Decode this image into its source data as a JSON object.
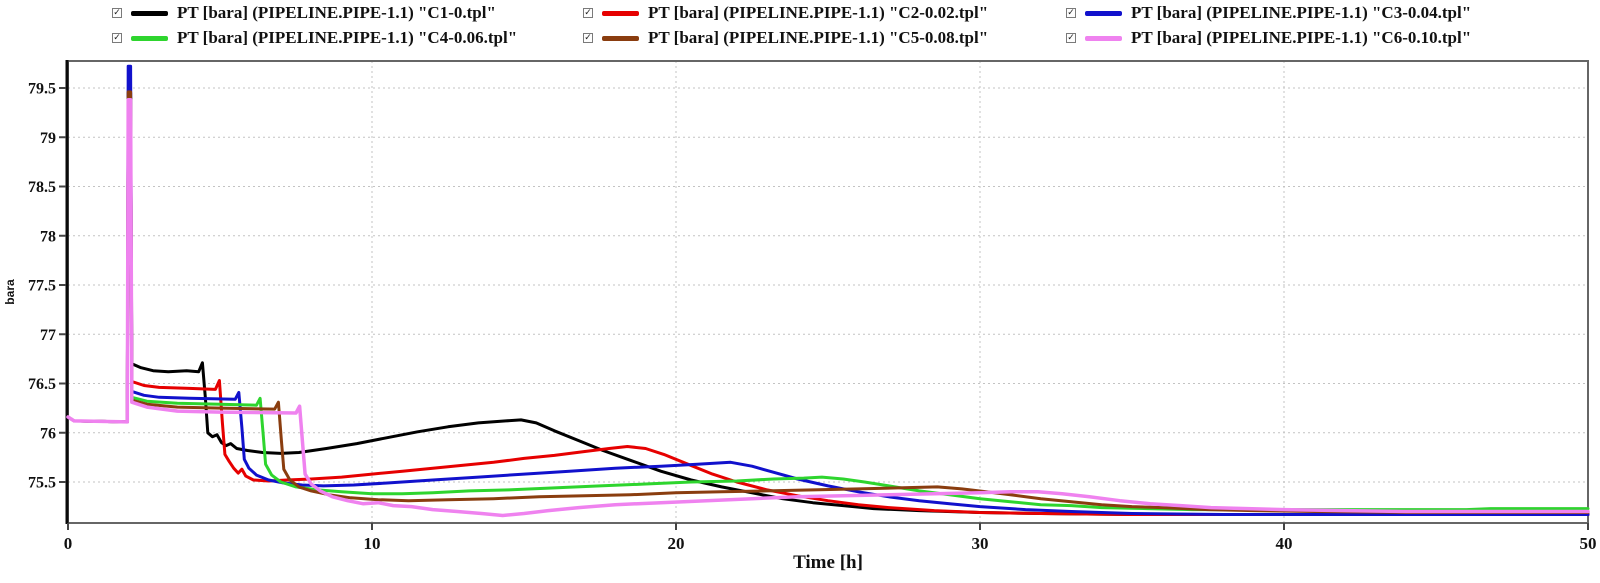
{
  "legend": {
    "check_glyph": "✓",
    "items": [
      {
        "label": "PT [bara] (PIPELINE.PIPE-1.1) \"C1-0.tpl\"",
        "color": "#000000",
        "checked": true
      },
      {
        "label": "PT [bara] (PIPELINE.PIPE-1.1) \"C2-0.02.tpl\"",
        "color": "#e60000",
        "checked": true
      },
      {
        "label": "PT [bara] (PIPELINE.PIPE-1.1) \"C3-0.04.tpl\"",
        "color": "#1111cc",
        "checked": true
      },
      {
        "label": "PT [bara] (PIPELINE.PIPE-1.1) \"C4-0.06.tpl\"",
        "color": "#2ed52e",
        "checked": true
      },
      {
        "label": "PT [bara] (PIPELINE.PIPE-1.1) \"C5-0.08.tpl\"",
        "color": "#8a3d0f",
        "checked": true
      },
      {
        "label": "PT [bara] (PIPELINE.PIPE-1.1) \"C6-0.10.tpl\"",
        "color": "#ef82ef",
        "checked": true
      }
    ]
  },
  "chart_data": {
    "type": "line",
    "title": "",
    "xlabel": "Time [h]",
    "ylabel": "bara",
    "xlim": [
      0,
      50
    ],
    "ylim": [
      75.08,
      79.77
    ],
    "x_ticks": [
      0,
      10,
      20,
      30,
      40,
      50
    ],
    "y_ticks": [
      75.5,
      76,
      76.5,
      77,
      77.5,
      78,
      78.5,
      79,
      79.5
    ],
    "grid": true,
    "legend_position": "top",
    "series": [
      {
        "name": "C1-0.tpl",
        "color": "#000000",
        "width": 3,
        "points": [
          [
            0,
            76.16
          ],
          [
            0.2,
            76.12
          ],
          [
            1.95,
            76.11
          ],
          [
            1.98,
            79.45
          ],
          [
            2.06,
            79.45
          ],
          [
            2.1,
            76.7
          ],
          [
            2.4,
            76.66
          ],
          [
            2.8,
            76.63
          ],
          [
            3.3,
            76.62
          ],
          [
            3.9,
            76.63
          ],
          [
            4.3,
            76.62
          ],
          [
            4.42,
            76.71
          ],
          [
            4.52,
            76.35
          ],
          [
            4.6,
            76.0
          ],
          [
            4.75,
            75.96
          ],
          [
            4.9,
            75.98
          ],
          [
            5.05,
            75.9
          ],
          [
            5.2,
            75.87
          ],
          [
            5.35,
            75.89
          ],
          [
            5.55,
            75.84
          ],
          [
            5.9,
            75.82
          ],
          [
            6.4,
            75.8
          ],
          [
            7,
            75.79
          ],
          [
            7.6,
            75.8
          ],
          [
            8.5,
            75.84
          ],
          [
            9.5,
            75.89
          ],
          [
            10.5,
            75.95
          ],
          [
            11.5,
            76.01
          ],
          [
            12.5,
            76.06
          ],
          [
            13.5,
            76.1
          ],
          [
            14.4,
            76.12
          ],
          [
            14.9,
            76.13
          ],
          [
            15.4,
            76.1
          ],
          [
            16,
            76.02
          ],
          [
            16.8,
            75.92
          ],
          [
            17.6,
            75.82
          ],
          [
            18.5,
            75.72
          ],
          [
            19.5,
            75.61
          ],
          [
            20.5,
            75.52
          ],
          [
            21.5,
            75.45
          ],
          [
            22.5,
            75.39
          ],
          [
            23.5,
            75.33
          ],
          [
            24.5,
            75.29
          ],
          [
            25.5,
            75.26
          ],
          [
            26.5,
            75.23
          ],
          [
            28,
            75.21
          ],
          [
            30,
            75.19
          ],
          [
            32,
            75.18
          ],
          [
            35,
            75.17
          ],
          [
            40,
            75.17
          ],
          [
            45,
            75.17
          ],
          [
            50,
            75.17
          ]
        ]
      },
      {
        "name": "C2-0.02.tpl",
        "color": "#e60000",
        "width": 3,
        "points": [
          [
            0,
            76.16
          ],
          [
            0.2,
            76.12
          ],
          [
            1.95,
            76.11
          ],
          [
            1.98,
            79.4
          ],
          [
            2.06,
            79.4
          ],
          [
            2.1,
            76.52
          ],
          [
            2.5,
            76.48
          ],
          [
            3,
            76.46
          ],
          [
            4,
            76.45
          ],
          [
            4.85,
            76.44
          ],
          [
            4.98,
            76.53
          ],
          [
            5.08,
            76.1
          ],
          [
            5.16,
            75.78
          ],
          [
            5.3,
            75.71
          ],
          [
            5.45,
            75.64
          ],
          [
            5.6,
            75.59
          ],
          [
            5.72,
            75.63
          ],
          [
            5.85,
            75.56
          ],
          [
            6.1,
            75.52
          ],
          [
            6.6,
            75.51
          ],
          [
            7.2,
            75.52
          ],
          [
            8,
            75.53
          ],
          [
            9,
            75.55
          ],
          [
            10,
            75.58
          ],
          [
            11,
            75.61
          ],
          [
            12,
            75.64
          ],
          [
            13,
            75.67
          ],
          [
            14,
            75.7
          ],
          [
            15,
            75.74
          ],
          [
            16,
            75.77
          ],
          [
            17,
            75.81
          ],
          [
            17.8,
            75.84
          ],
          [
            18.4,
            75.86
          ],
          [
            19,
            75.84
          ],
          [
            19.6,
            75.78
          ],
          [
            20.4,
            75.68
          ],
          [
            21.2,
            75.58
          ],
          [
            22,
            75.5
          ],
          [
            23,
            75.42
          ],
          [
            24,
            75.36
          ],
          [
            25,
            75.31
          ],
          [
            26,
            75.27
          ],
          [
            27,
            75.24
          ],
          [
            28.5,
            75.21
          ],
          [
            30,
            75.19
          ],
          [
            32,
            75.18
          ],
          [
            35,
            75.17
          ],
          [
            40,
            75.17
          ],
          [
            45,
            75.17
          ],
          [
            50,
            75.17
          ]
        ]
      },
      {
        "name": "C3-0.04.tpl",
        "color": "#1111cc",
        "width": 3,
        "points": [
          [
            0,
            76.16
          ],
          [
            0.2,
            76.12
          ],
          [
            1.95,
            76.11
          ],
          [
            1.98,
            79.72
          ],
          [
            2.06,
            79.72
          ],
          [
            2.1,
            76.42
          ],
          [
            2.5,
            76.38
          ],
          [
            3,
            76.36
          ],
          [
            4,
            76.35
          ],
          [
            5.5,
            76.34
          ],
          [
            5.62,
            76.41
          ],
          [
            5.72,
            76.05
          ],
          [
            5.8,
            75.73
          ],
          [
            5.95,
            75.64
          ],
          [
            6.2,
            75.57
          ],
          [
            6.6,
            75.52
          ],
          [
            7.1,
            75.49
          ],
          [
            7.7,
            75.47
          ],
          [
            8.4,
            75.46
          ],
          [
            9.4,
            75.47
          ],
          [
            10.5,
            75.49
          ],
          [
            12,
            75.52
          ],
          [
            13.5,
            75.55
          ],
          [
            15,
            75.58
          ],
          [
            16.5,
            75.61
          ],
          [
            18,
            75.64
          ],
          [
            19.5,
            75.66
          ],
          [
            20.7,
            75.68
          ],
          [
            21.8,
            75.7
          ],
          [
            22.5,
            75.66
          ],
          [
            23.2,
            75.6
          ],
          [
            24,
            75.53
          ],
          [
            25,
            75.46
          ],
          [
            26,
            75.4
          ],
          [
            27,
            75.35
          ],
          [
            28,
            75.31
          ],
          [
            29,
            75.28
          ],
          [
            30,
            75.25
          ],
          [
            31.5,
            75.22
          ],
          [
            33,
            75.2
          ],
          [
            35,
            75.18
          ],
          [
            38,
            75.17
          ],
          [
            42,
            75.17
          ],
          [
            46,
            75.17
          ],
          [
            50,
            75.17
          ]
        ]
      },
      {
        "name": "C4-0.06.tpl",
        "color": "#2ed52e",
        "width": 3,
        "points": [
          [
            0,
            76.16
          ],
          [
            0.2,
            76.12
          ],
          [
            1.95,
            76.11
          ],
          [
            1.98,
            79.4
          ],
          [
            2.06,
            79.4
          ],
          [
            2.1,
            76.36
          ],
          [
            2.6,
            76.32
          ],
          [
            3.6,
            76.3
          ],
          [
            5,
            76.29
          ],
          [
            6.2,
            76.28
          ],
          [
            6.32,
            76.35
          ],
          [
            6.42,
            75.98
          ],
          [
            6.5,
            75.68
          ],
          [
            6.7,
            75.57
          ],
          [
            7,
            75.5
          ],
          [
            7.5,
            75.45
          ],
          [
            8.2,
            75.42
          ],
          [
            9,
            75.4
          ],
          [
            10,
            75.38
          ],
          [
            11,
            75.38
          ],
          [
            12,
            75.39
          ],
          [
            13.2,
            75.41
          ],
          [
            14.5,
            75.42
          ],
          [
            16,
            75.44
          ],
          [
            17.5,
            75.46
          ],
          [
            19,
            75.48
          ],
          [
            20.5,
            75.5
          ],
          [
            22,
            75.51
          ],
          [
            23.2,
            75.53
          ],
          [
            24.2,
            75.54
          ],
          [
            24.8,
            75.55
          ],
          [
            25.5,
            75.53
          ],
          [
            26.2,
            75.5
          ],
          [
            27,
            75.46
          ],
          [
            28,
            75.41
          ],
          [
            29,
            75.37
          ],
          [
            30,
            75.33
          ],
          [
            31,
            75.3
          ],
          [
            32,
            75.27
          ],
          [
            33,
            75.26
          ],
          [
            34,
            75.24
          ],
          [
            35.5,
            75.23
          ],
          [
            37,
            75.22
          ],
          [
            40,
            75.22
          ],
          [
            43,
            75.22
          ],
          [
            46,
            75.22
          ],
          [
            46.8,
            75.23
          ],
          [
            50,
            75.23
          ]
        ]
      },
      {
        "name": "C5-0.08.tpl",
        "color": "#8a3d0f",
        "width": 3,
        "points": [
          [
            0,
            76.16
          ],
          [
            0.2,
            76.12
          ],
          [
            1.95,
            76.11
          ],
          [
            1.98,
            79.46
          ],
          [
            2.06,
            79.46
          ],
          [
            2.1,
            76.33
          ],
          [
            2.6,
            76.29
          ],
          [
            3.6,
            76.26
          ],
          [
            5,
            76.25
          ],
          [
            6.8,
            76.24
          ],
          [
            6.92,
            76.31
          ],
          [
            7.02,
            75.92
          ],
          [
            7.1,
            75.63
          ],
          [
            7.3,
            75.52
          ],
          [
            7.6,
            75.45
          ],
          [
            8,
            75.41
          ],
          [
            8.6,
            75.37
          ],
          [
            9.3,
            75.34
          ],
          [
            10.2,
            75.32
          ],
          [
            11.2,
            75.31
          ],
          [
            12.5,
            75.32
          ],
          [
            14,
            75.33
          ],
          [
            15.5,
            75.35
          ],
          [
            17,
            75.36
          ],
          [
            18.5,
            75.37
          ],
          [
            20,
            75.39
          ],
          [
            21.5,
            75.4
          ],
          [
            23,
            75.41
          ],
          [
            24.5,
            75.42
          ],
          [
            26,
            75.43
          ],
          [
            27.3,
            75.44
          ],
          [
            28.6,
            75.45
          ],
          [
            29.4,
            75.43
          ],
          [
            30.2,
            75.4
          ],
          [
            31,
            75.37
          ],
          [
            32,
            75.33
          ],
          [
            33,
            75.3
          ],
          [
            34,
            75.27
          ],
          [
            35,
            75.25
          ],
          [
            36,
            75.24
          ],
          [
            37.5,
            75.22
          ],
          [
            39,
            75.21
          ],
          [
            41,
            75.2
          ],
          [
            44,
            75.19
          ],
          [
            47,
            75.19
          ],
          [
            50,
            75.19
          ]
        ]
      },
      {
        "name": "C6-0.10.tpl",
        "color": "#ef82ef",
        "width": 3.5,
        "points": [
          [
            0,
            76.16
          ],
          [
            0.2,
            76.12
          ],
          [
            1.95,
            76.11
          ],
          [
            1.98,
            79.38
          ],
          [
            2.06,
            79.38
          ],
          [
            2.1,
            76.31
          ],
          [
            2.6,
            76.26
          ],
          [
            3.6,
            76.22
          ],
          [
            5,
            76.21
          ],
          [
            7.5,
            76.2
          ],
          [
            7.62,
            76.27
          ],
          [
            7.72,
            75.88
          ],
          [
            7.8,
            75.58
          ],
          [
            8,
            75.48
          ],
          [
            8.3,
            75.41
          ],
          [
            8.7,
            75.35
          ],
          [
            9.2,
            75.31
          ],
          [
            9.7,
            75.28
          ],
          [
            10.2,
            75.29
          ],
          [
            10.7,
            75.26
          ],
          [
            11.3,
            75.25
          ],
          [
            12,
            75.22
          ],
          [
            12.8,
            75.2
          ],
          [
            13.6,
            75.18
          ],
          [
            14.3,
            75.16
          ],
          [
            15,
            75.18
          ],
          [
            15.8,
            75.21
          ],
          [
            16.8,
            75.24
          ],
          [
            18,
            75.27
          ],
          [
            19.5,
            75.29
          ],
          [
            21,
            75.31
          ],
          [
            22.5,
            75.33
          ],
          [
            24,
            75.35
          ],
          [
            25.5,
            75.36
          ],
          [
            27,
            75.37
          ],
          [
            28.5,
            75.38
          ],
          [
            30,
            75.39
          ],
          [
            31,
            75.4
          ],
          [
            31.9,
            75.4
          ],
          [
            32.7,
            75.38
          ],
          [
            33.6,
            75.35
          ],
          [
            34.6,
            75.31
          ],
          [
            35.6,
            75.28
          ],
          [
            36.6,
            75.26
          ],
          [
            37.6,
            75.24
          ],
          [
            38.8,
            75.23
          ],
          [
            40,
            75.22
          ],
          [
            42,
            75.21
          ],
          [
            44,
            75.2
          ],
          [
            47,
            75.2
          ],
          [
            50,
            75.2
          ]
        ]
      }
    ]
  }
}
